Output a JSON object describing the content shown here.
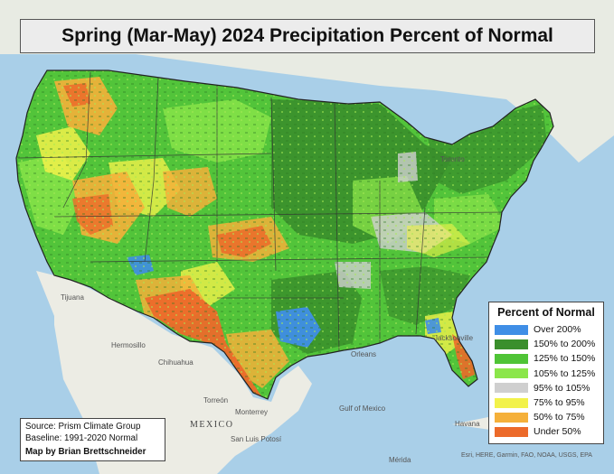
{
  "map": {
    "title": "Spring (Mar-May) 2024 Precipitation Percent of Normal",
    "legend": {
      "title": "Percent of Normal",
      "items": [
        {
          "label": "Over 200%",
          "color": "#3f8ee6"
        },
        {
          "label": "150% to 200%",
          "color": "#3a8f2c"
        },
        {
          "label": "125% to 150%",
          "color": "#4fc436"
        },
        {
          "label": "105% to 125%",
          "color": "#8be64a"
        },
        {
          "label": "95% to 105%",
          "color": "#cfcfcf"
        },
        {
          "label": "75% to 95%",
          "color": "#f2f24a"
        },
        {
          "label": "50% to 75%",
          "color": "#f5b03a"
        },
        {
          "label": "Under 50%",
          "color": "#ec6a2a"
        }
      ]
    },
    "source": {
      "line1": "Source: Prism Climate Group",
      "line2": "Baseline: 1991-2020 Normal",
      "credit": "Map by Brian Brettschneider"
    },
    "basemap_labels": {
      "mexico": "MEXICO",
      "chihuahua": "Chihuahua",
      "monterrey": "Monterrey",
      "torreon": "Torreón",
      "hermosillo": "Hermosillo",
      "tijuana": "Tijuana",
      "havana": "Havana",
      "orleans": "Orleans",
      "jacksonville": "Jacksonville",
      "toronto": "Toronto",
      "gulf": "Gulf of Mexico",
      "san_luis": "San Luis Potosí",
      "merida": "Mérida"
    },
    "attribution": "Esri, HERE, Garmin, FAO, NOAA, USGS, EPA"
  }
}
